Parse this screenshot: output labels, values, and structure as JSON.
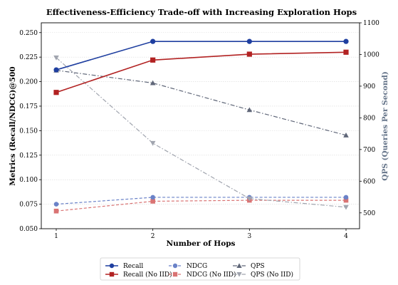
{
  "chart_data": {
    "type": "line",
    "title": "Effectiveness-Efficiency Trade-off with Increasing Exploration Hops",
    "xlabel": "Number of Hops",
    "ylabel_left": "Metrics (Recall/NDCG)@500",
    "ylabel_right": "QPS (Queries Per Second)",
    "x": [
      1,
      2,
      3,
      4
    ],
    "x_tick_labels": [
      "1",
      "2",
      "3",
      "4"
    ],
    "ylim_left": [
      0.05,
      0.26
    ],
    "yticks_left": [
      "0.050",
      "0.075",
      "0.100",
      "0.125",
      "0.150",
      "0.175",
      "0.200",
      "0.225",
      "0.250"
    ],
    "ylim_right": [
      450,
      1100
    ],
    "yticks_right": [
      "500",
      "600",
      "700",
      "800",
      "900",
      "1000",
      "1100"
    ],
    "grid": "horizontal, dotted",
    "legend_position": "bottom-center",
    "series": [
      {
        "name": "Recall",
        "axis": "left",
        "values": [
          0.212,
          0.241,
          0.241,
          0.241
        ],
        "color": "#1f3fa0",
        "marker": "circle",
        "dash": "solid"
      },
      {
        "name": "Recall (No IID)",
        "axis": "left",
        "values": [
          0.189,
          0.222,
          0.228,
          0.23
        ],
        "color": "#b22222",
        "marker": "square",
        "dash": "solid"
      },
      {
        "name": "NDCG",
        "axis": "left",
        "values": [
          0.075,
          0.082,
          0.082,
          0.082
        ],
        "color": "#6a82c8",
        "marker": "circle",
        "dash": "dashed"
      },
      {
        "name": "NDCG (No IID)",
        "axis": "left",
        "values": [
          0.068,
          0.078,
          0.079,
          0.079
        ],
        "color": "#d97373",
        "marker": "square",
        "dash": "dashed"
      },
      {
        "name": "QPS",
        "axis": "right",
        "values": [
          950,
          910,
          825,
          745
        ],
        "color": "#5f6678",
        "marker": "triangle-up",
        "dash": "dashdot"
      },
      {
        "name": "QPS (No IID)",
        "axis": "right",
        "values": [
          990,
          720,
          545,
          518
        ],
        "color": "#a0a4ae",
        "marker": "triangle-down",
        "dash": "dashdot"
      }
    ],
    "legend_order": [
      "Recall",
      "NDCG",
      "QPS",
      "Recall (No IID)",
      "NDCG (No IID)",
      "QPS (No IID)"
    ]
  }
}
